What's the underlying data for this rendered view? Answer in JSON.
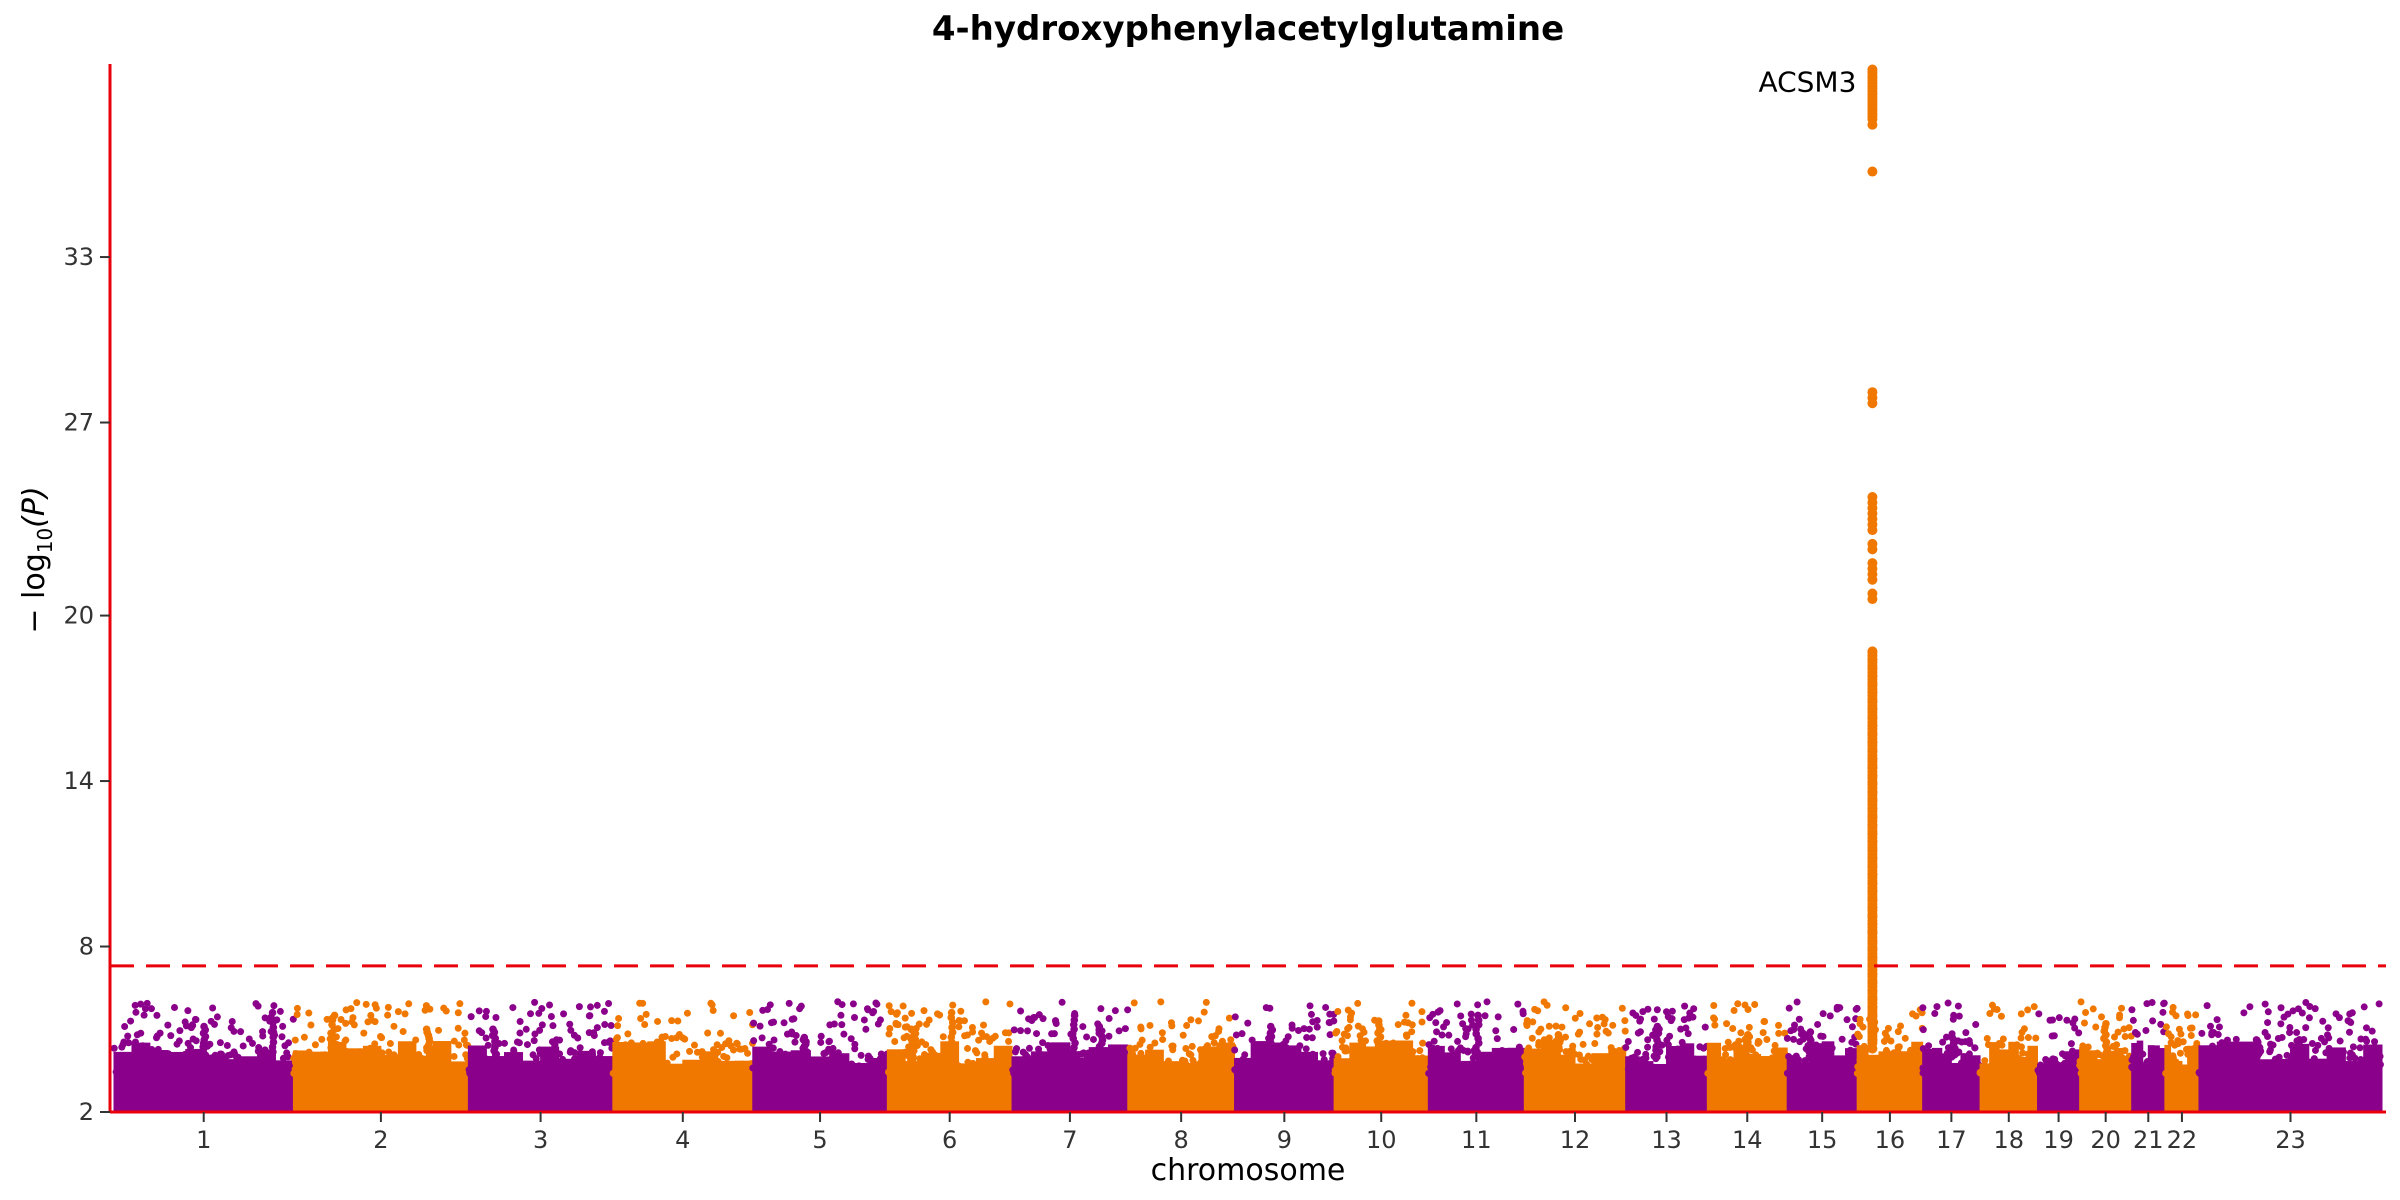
{
  "colors": {
    "odd_chromosome": "#8B008B",
    "even_chromosome": "#F07800",
    "axis": "#E8000B",
    "threshold": "#E8000B"
  },
  "chart_data": {
    "type": "scatter",
    "title": "4-hydroxyphenylacetylglutamine",
    "xlabel": "chromosome",
    "ylabel_main": "− log",
    "ylabel_sub": "10",
    "ylabel_end": "(P)",
    "ylim": [
      2,
      40
    ],
    "yticks": [
      2,
      8,
      14,
      20,
      27,
      33
    ],
    "ytick_labels": [
      "2",
      "8",
      "14",
      "20",
      "27",
      "33"
    ],
    "genome_wide_threshold": 7.3,
    "threshold_style": "dashed",
    "grid": false,
    "chromosomes": [
      {
        "label": "1",
        "start": 0.0,
        "end": 1.0
      },
      {
        "label": "2",
        "start": 1.0,
        "end": 1.975
      },
      {
        "label": "3",
        "start": 1.975,
        "end": 2.78
      },
      {
        "label": "4",
        "start": 2.78,
        "end": 3.56
      },
      {
        "label": "5",
        "start": 3.56,
        "end": 4.31
      },
      {
        "label": "6",
        "start": 4.31,
        "end": 5.005
      },
      {
        "label": "7",
        "start": 5.005,
        "end": 5.65
      },
      {
        "label": "8",
        "start": 5.65,
        "end": 6.245
      },
      {
        "label": "9",
        "start": 6.245,
        "end": 6.8
      },
      {
        "label": "10",
        "start": 6.8,
        "end": 7.325
      },
      {
        "label": "11",
        "start": 7.325,
        "end": 7.86
      },
      {
        "label": "12",
        "start": 7.86,
        "end": 8.425
      },
      {
        "label": "13",
        "start": 8.425,
        "end": 8.88
      },
      {
        "label": "14",
        "start": 8.88,
        "end": 9.325
      },
      {
        "label": "15",
        "start": 9.325,
        "end": 9.715
      },
      {
        "label": "16",
        "start": 9.715,
        "end": 10.08
      },
      {
        "label": "17",
        "start": 10.08,
        "end": 10.4
      },
      {
        "label": "18",
        "start": 10.4,
        "end": 10.72
      },
      {
        "label": "19",
        "start": 10.72,
        "end": 10.955
      },
      {
        "label": "20",
        "start": 10.955,
        "end": 11.245
      },
      {
        "label": "21",
        "start": 11.245,
        "end": 11.43
      },
      {
        "label": "22",
        "start": 11.43,
        "end": 11.62
      },
      {
        "label": "23",
        "start": 11.62,
        "end": 12.64
      }
    ],
    "peaks": [
      {
        "chromosome": "1",
        "pos": 0.5,
        "max": 5.1
      },
      {
        "chromosome": "1",
        "pos": 0.88,
        "max": 5.6
      },
      {
        "chromosome": "2",
        "pos": 1.22,
        "max": 5.5
      },
      {
        "chromosome": "2",
        "pos": 1.75,
        "max": 5.0
      },
      {
        "chromosome": "3",
        "pos": 2.12,
        "max": 5.0
      },
      {
        "chromosome": "5",
        "pos": 3.85,
        "max": 4.7
      },
      {
        "chromosome": "6",
        "pos": 4.67,
        "max": 5.6
      },
      {
        "chromosome": "6",
        "pos": 4.45,
        "max": 5.0
      },
      {
        "chromosome": "7",
        "pos": 5.35,
        "max": 5.5
      },
      {
        "chromosome": "7",
        "pos": 5.5,
        "max": 5.1
      },
      {
        "chromosome": "9",
        "pos": 6.45,
        "max": 5.1
      },
      {
        "chromosome": "10",
        "pos": 7.05,
        "max": 5.3
      },
      {
        "chromosome": "11",
        "pos": 7.6,
        "max": 5.5
      },
      {
        "chromosome": "12",
        "pos": 8.05,
        "max": 4.8
      },
      {
        "chromosome": "13",
        "pos": 8.6,
        "max": 5.1
      },
      {
        "chromosome": "14",
        "pos": 9.1,
        "max": 4.8
      },
      {
        "chromosome": "15",
        "pos": 9.45,
        "max": 4.9
      },
      {
        "chromosome": "17",
        "pos": 10.25,
        "max": 4.7
      },
      {
        "chromosome": "20",
        "pos": 11.1,
        "max": 5.2
      },
      {
        "chromosome": "23",
        "pos": 11.95,
        "max": 4.6
      }
    ],
    "lead_signal": {
      "chromosome": "16",
      "pos": 9.8,
      "label": "ACSM3",
      "values": [
        39.8,
        39.7,
        39.6,
        39.5,
        39.4,
        39.3,
        39.2,
        39.1,
        39.0,
        38.9,
        38.8,
        38.7,
        38.6,
        38.5,
        38.4,
        38.3,
        38.2,
        38.1,
        38.0,
        37.8,
        36.1,
        28.1,
        27.9,
        27.7,
        24.3,
        24.1,
        23.9,
        23.7,
        23.5,
        23.3,
        23.1,
        22.6,
        22.4,
        21.9,
        21.7,
        21.5,
        21.3,
        20.8,
        20.6,
        18.7,
        18.4,
        18.1,
        17.8,
        17.5,
        17.2,
        16.9,
        16.6,
        16.3,
        16.0,
        15.7,
        15.4,
        15.1,
        14.8,
        14.5,
        14.2,
        13.9,
        13.6,
        13.3,
        13.0,
        12.7,
        12.4,
        12.1,
        11.8,
        11.5,
        11.2,
        10.9,
        10.6,
        10.3,
        10.0,
        9.7,
        9.4,
        9.1,
        8.8,
        8.5,
        8.2,
        7.9,
        7.6,
        7.3,
        7.0,
        6.7,
        6.4,
        6.1,
        5.8,
        5.5,
        5.2,
        4.9,
        4.6,
        4.3
      ]
    }
  }
}
